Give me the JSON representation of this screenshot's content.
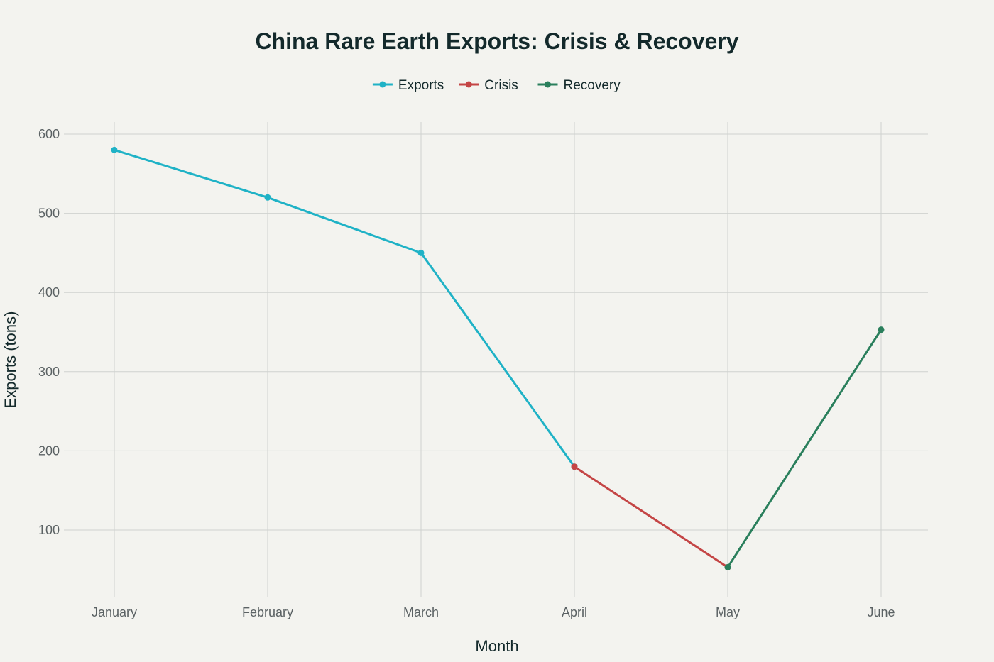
{
  "chart_data": {
    "type": "line",
    "title": "China Rare Earth Exports: Crisis & Recovery",
    "xlabel": "Month",
    "ylabel": "Exports (tons)",
    "categories": [
      "January",
      "February",
      "March",
      "April",
      "May",
      "June"
    ],
    "ylim": [
      15,
      615
    ],
    "yticks": [
      100,
      200,
      300,
      400,
      500,
      600
    ],
    "grid": true,
    "legend_position": "top-center",
    "series": [
      {
        "name": "Exports",
        "color": "#1fb2c6",
        "points": [
          {
            "x": "January",
            "y": 580
          },
          {
            "x": "February",
            "y": 520
          },
          {
            "x": "March",
            "y": 450
          },
          {
            "x": "April",
            "y": 180
          }
        ]
      },
      {
        "name": "Crisis",
        "color": "#c44545",
        "points": [
          {
            "x": "April",
            "y": 180
          },
          {
            "x": "May",
            "y": 53
          }
        ]
      },
      {
        "name": "Recovery",
        "color": "#2a7f5c",
        "points": [
          {
            "x": "May",
            "y": 53
          },
          {
            "x": "June",
            "y": 353
          }
        ]
      }
    ]
  }
}
